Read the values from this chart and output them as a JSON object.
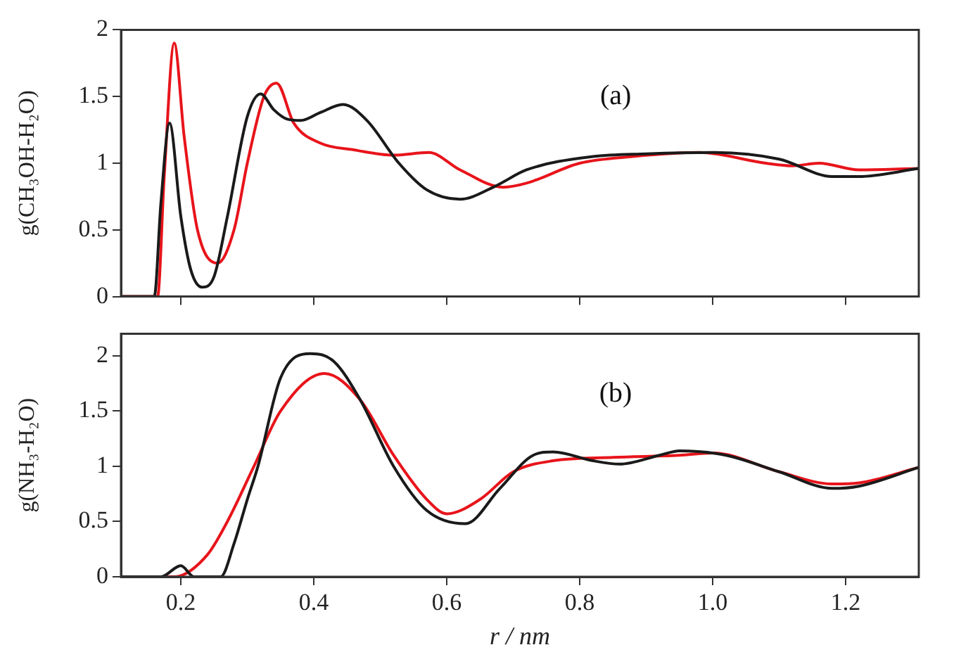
{
  "chart_data": [
    {
      "type": "line",
      "ylabel": "g(CH₃OH-H₂O)",
      "annotations": [
        "(a)"
      ],
      "xlim": [
        0.11,
        1.31
      ],
      "xticks": [
        0.2,
        0.4,
        0.6,
        0.8,
        1,
        1.2
      ],
      "ylim": [
        0,
        2
      ],
      "yticks": [
        0,
        0.5,
        1,
        1.5,
        2
      ],
      "tick_labels": "y",
      "grid": false,
      "legend": false,
      "marker": "none",
      "line_style": "solid",
      "series": [
        {
          "color": "#1a1a1a",
          "x": [
            0.11,
            0.16,
            0.17,
            0.183,
            0.2,
            0.215,
            0.232,
            0.25,
            0.27,
            0.3,
            0.32,
            0.34,
            0.36,
            0.38,
            0.41,
            0.444,
            0.48,
            0.528,
            0.57,
            0.62,
            0.67,
            0.72,
            0.82,
            0.9,
            1.0,
            1.1,
            1.18,
            1.22,
            1.31
          ],
          "values": [
            0,
            0,
            0.7,
            1.3,
            0.6,
            0.2,
            0.07,
            0.15,
            0.6,
            1.35,
            1.52,
            1.4,
            1.33,
            1.32,
            1.38,
            1.44,
            1.32,
            1.0,
            0.8,
            0.73,
            0.82,
            0.95,
            1.05,
            1.07,
            1.08,
            1.03,
            0.9,
            0.9,
            0.96
          ]
        },
        {
          "color": "#e8141b",
          "x": [
            0.11,
            0.165,
            0.175,
            0.19,
            0.205,
            0.225,
            0.255,
            0.28,
            0.3,
            0.325,
            0.344,
            0.37,
            0.41,
            0.46,
            0.52,
            0.573,
            0.62,
            0.685,
            0.72,
            0.8,
            0.88,
            0.98,
            1.08,
            1.12,
            1.16,
            1.22,
            1.31
          ],
          "values": [
            0,
            0,
            0.9,
            1.9,
            1.2,
            0.5,
            0.25,
            0.5,
            1.0,
            1.5,
            1.6,
            1.3,
            1.15,
            1.1,
            1.06,
            1.08,
            0.95,
            0.82,
            0.85,
            1.0,
            1.05,
            1.08,
            1.0,
            0.98,
            1.0,
            0.95,
            0.96
          ]
        }
      ]
    },
    {
      "type": "line",
      "xlabel": "r / nm",
      "ylabel": "g(NH₃-H₂O)",
      "annotations": [
        "(b)"
      ],
      "xlim": [
        0.11,
        1.31
      ],
      "xticks": [
        0.2,
        0.4,
        0.6,
        0.8,
        {
          "value": 1,
          "label": "1.0"
        },
        1.2
      ],
      "ylim": [
        0,
        2.2
      ],
      "yticks": [
        0,
        0.5,
        1,
        1.5,
        2
      ],
      "grid": false,
      "legend": false,
      "marker": "none",
      "line_style": "solid",
      "series": [
        {
          "color": "#1a1a1a",
          "x": [
            0.11,
            0.17,
            0.2,
            0.22,
            0.26,
            0.28,
            0.3,
            0.316,
            0.35,
            0.395,
            0.43,
            0.47,
            0.52,
            0.57,
            0.628,
            0.68,
            0.73,
            0.76,
            0.82,
            0.86,
            0.92,
            0.95,
            1.02,
            1.1,
            1.18,
            1.22,
            1.31
          ],
          "values": [
            0,
            0,
            0.1,
            0,
            0,
            0.3,
            0.7,
            1.0,
            1.8,
            2.02,
            1.95,
            1.6,
            1.0,
            0.6,
            0.48,
            0.8,
            1.1,
            1.13,
            1.05,
            1.02,
            1.1,
            1.14,
            1.1,
            0.95,
            0.8,
            0.82,
            0.99
          ]
        },
        {
          "color": "#e8141b",
          "x": [
            0.11,
            0.19,
            0.24,
            0.27,
            0.31,
            0.35,
            0.416,
            0.47,
            0.52,
            0.57,
            0.6,
            0.65,
            0.7,
            0.76,
            0.85,
            0.95,
            1.0,
            1.1,
            1.18,
            1.22,
            1.31
          ],
          "values": [
            0,
            0,
            0.2,
            0.5,
            1.0,
            1.5,
            1.84,
            1.6,
            1.1,
            0.7,
            0.57,
            0.7,
            0.95,
            1.05,
            1.08,
            1.1,
            1.12,
            0.95,
            0.84,
            0.85,
            0.99
          ]
        }
      ]
    }
  ]
}
